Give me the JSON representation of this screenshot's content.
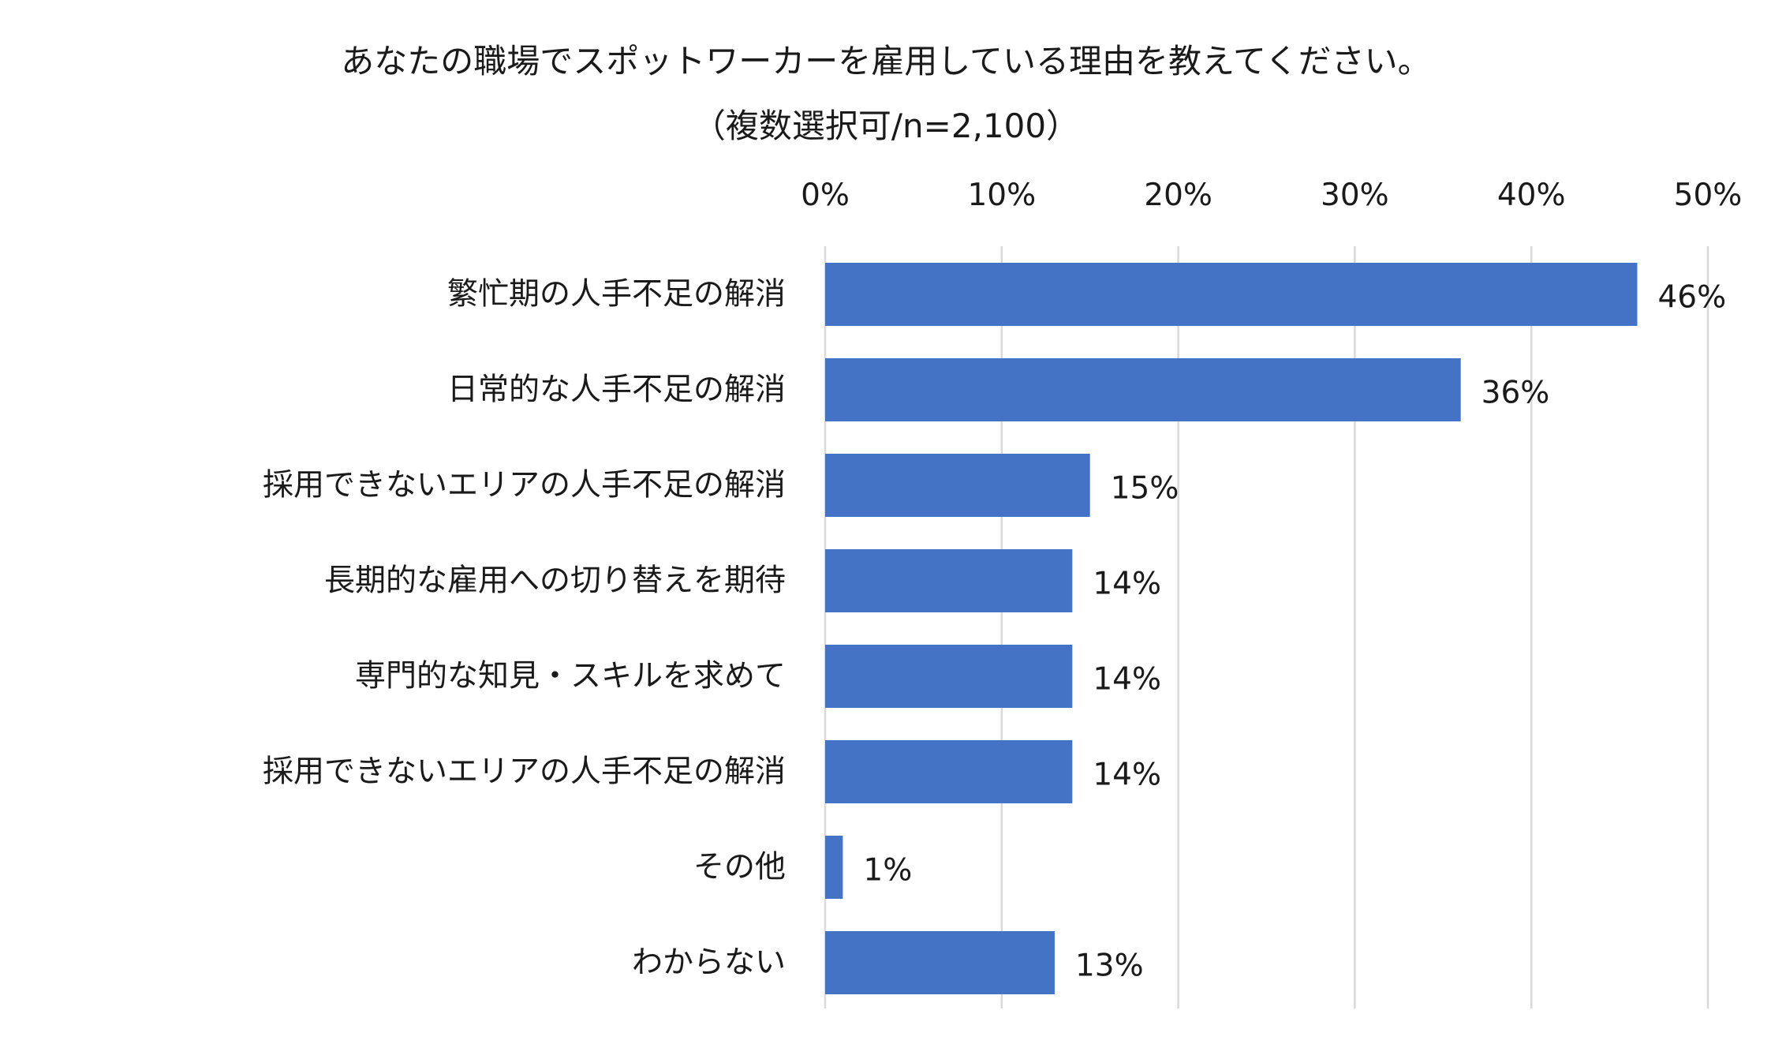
{
  "chart_data": {
    "type": "bar",
    "orientation": "horizontal",
    "title": "あなたの職場でスポットワーカーを雇用している理由を教えてください。",
    "subtitle": "（複数選択可/n=2,100）",
    "xlim": [
      0,
      50
    ],
    "x_ticks": [
      {
        "value": 0,
        "label": "0%"
      },
      {
        "value": 10,
        "label": "10%"
      },
      {
        "value": 20,
        "label": "20%"
      },
      {
        "value": 30,
        "label": "30%"
      },
      {
        "value": 40,
        "label": "40%"
      },
      {
        "value": 50,
        "label": "50%"
      }
    ],
    "grid": true,
    "axis_position": "top",
    "legend": "none",
    "bar_color": "#4472C4",
    "gridline_color": "#D9D9D9",
    "categories": [
      "繁忙期の人手不足の解消",
      "日常的な人手不足の解消",
      "採用できないエリアの人手不足の解消",
      "長期的な雇用への切り替えを期待",
      "専門的な知見・スキルを求めて",
      "採用できないエリアの人手不足の解消",
      "その他",
      "わからない"
    ],
    "values": [
      46,
      36,
      15,
      14,
      14,
      14,
      1,
      13
    ],
    "value_labels": [
      "46%",
      "36%",
      "15%",
      "14%",
      "14%",
      "14%",
      "1%",
      "13%"
    ]
  }
}
